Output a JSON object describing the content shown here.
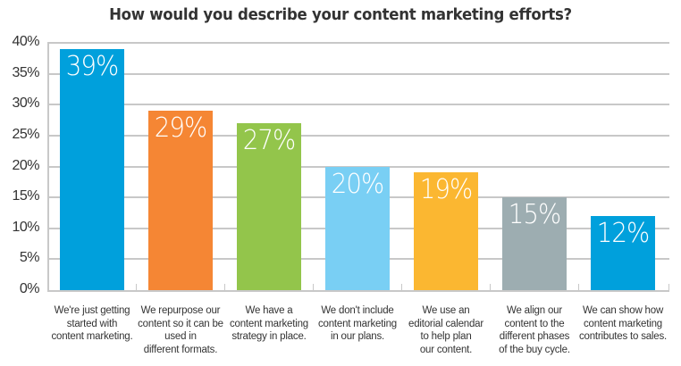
{
  "chart_data": {
    "type": "bar",
    "title": "How would you describe your content marketing efforts?",
    "xlabel": "",
    "ylabel": "",
    "ylim": [
      0,
      40
    ],
    "yticks": [
      "0%",
      "5%",
      "10%",
      "15%",
      "20%",
      "25%",
      "30%",
      "35%",
      "40%"
    ],
    "grid": true,
    "legend": null,
    "categories": [
      "We're just getting\nstarted with\ncontent marketing.",
      "We repurpose our\ncontent so it can be\nused in\ndifferent formats.",
      "We have a\ncontent marketing\nstrategy in place.",
      "We don't include\ncontent marketing\nin our plans.",
      "We use an\neditorial calendar\nto help plan\nour content.",
      "We align our\ncontent to the\ndifferent phases\nof the buy cycle.",
      "We can show how\ncontent marketing\ncontributes to sales."
    ],
    "values": [
      39,
      29,
      27,
      20,
      19,
      15,
      12
    ],
    "value_labels": [
      "39%",
      "29%",
      "27%",
      "20%",
      "19%",
      "15%",
      "12%"
    ],
    "colors": [
      "#00a0dc",
      "#f58634",
      "#93c54b",
      "#79cff4",
      "#fbb731",
      "#9dadb1",
      "#00a0dc"
    ]
  }
}
